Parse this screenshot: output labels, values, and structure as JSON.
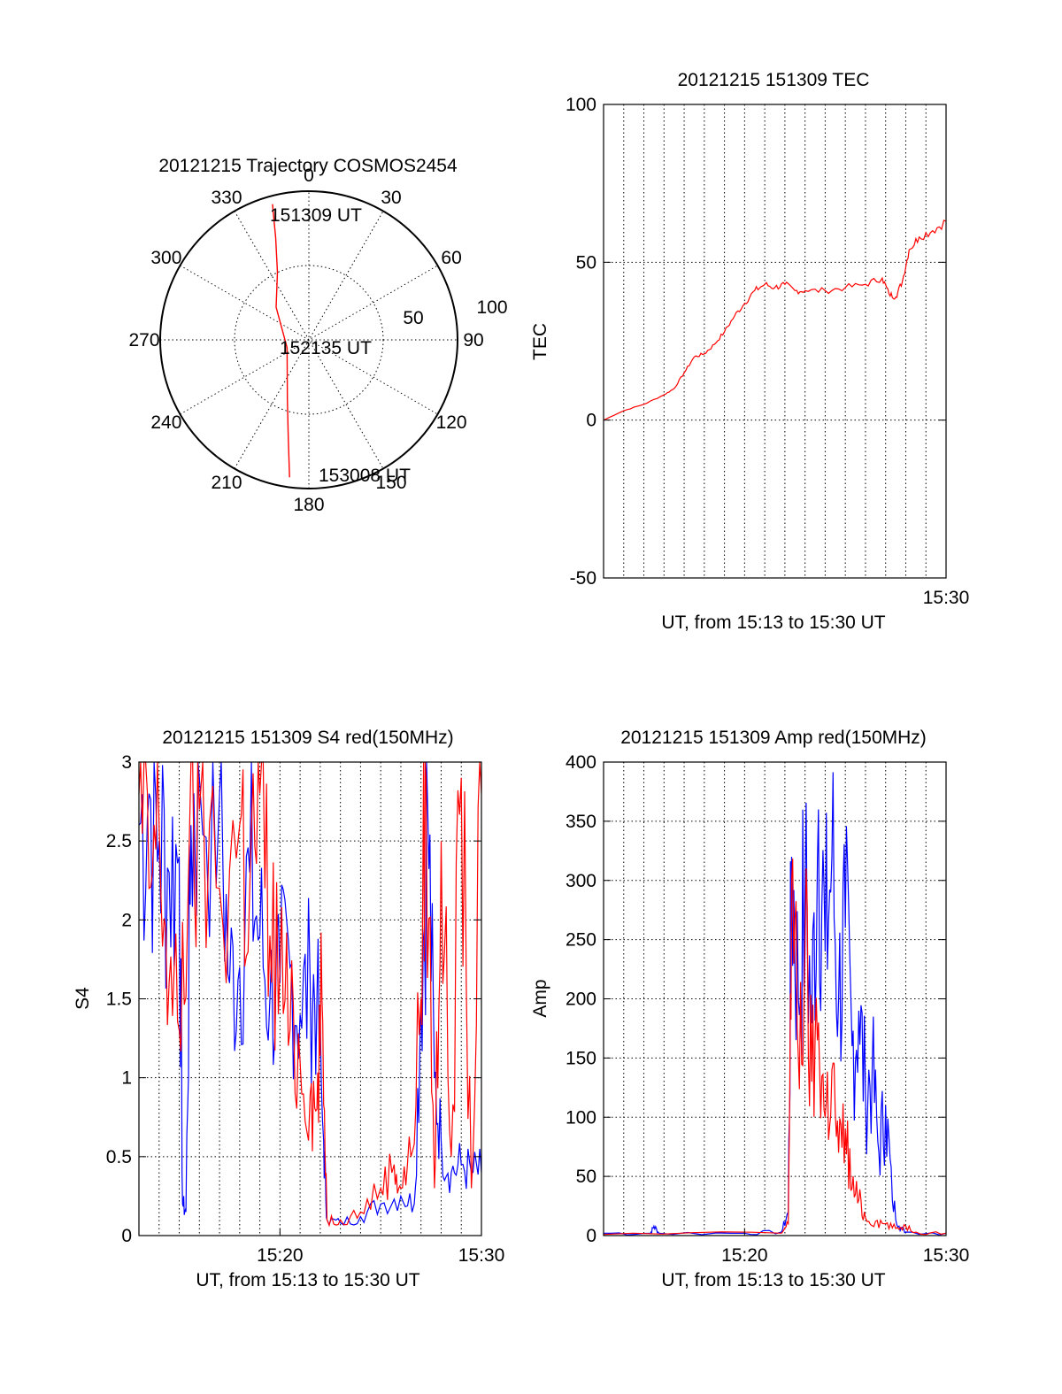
{
  "colors": {
    "red": "#ff0000",
    "blue": "#0000ff",
    "axis": "#000000",
    "grid": "#000000",
    "background": "#ffffff"
  },
  "chart_data": [
    {
      "id": "trajectory",
      "type": "polar",
      "title": "20121215 Trajectory COSMOS2454",
      "angle_labels": [
        "0",
        "30",
        "60",
        "90",
        "120",
        "150",
        "180",
        "210",
        "240",
        "270",
        "300",
        "330"
      ],
      "radius_labels": [
        "50",
        "100"
      ],
      "grid": true,
      "start_label": "151309 UT",
      "mid_label": "152135 UT",
      "end_label": "153008 UT",
      "series": [
        {
          "color": "red",
          "points": [
            {
              "az": 345,
              "el": 5
            },
            {
              "az": 342,
              "el": 25
            },
            {
              "az": 335,
              "el": 45
            },
            {
              "az": 315,
              "el": 62
            },
            {
              "az": 250,
              "el": 76
            },
            {
              "az": 200,
              "el": 52
            },
            {
              "az": 192,
              "el": 30
            },
            {
              "az": 188,
              "el": 6
            }
          ]
        }
      ]
    },
    {
      "id": "tec",
      "type": "line",
      "title": "20121215 151309 TEC",
      "xlabel": "UT, from 15:13 to 15:30 UT",
      "ylabel": "TEC",
      "xlim": [
        "15:13",
        "15:30"
      ],
      "ylim": [
        -50,
        100
      ],
      "yticks": [
        "-50",
        "0",
        "50",
        "100"
      ],
      "xtick_labels": [
        {
          "x": "15:30",
          "label": "15:30"
        }
      ],
      "grid": true,
      "series": [
        {
          "color": "red",
          "points": [
            [
              "15:13:00",
              0
            ],
            [
              "15:14:00",
              3
            ],
            [
              "15:15:00",
              5
            ],
            [
              "15:16:00",
              8
            ],
            [
              "15:16:30",
              10
            ],
            [
              "15:17:00",
              15
            ],
            [
              "15:17:30",
              20
            ],
            [
              "15:18:00",
              21
            ],
            [
              "15:18:30",
              24
            ],
            [
              "15:19:00",
              28
            ],
            [
              "15:19:30",
              33
            ],
            [
              "15:20:00",
              37
            ],
            [
              "15:20:30",
              41
            ],
            [
              "15:21:00",
              43
            ],
            [
              "15:21:30",
              42
            ],
            [
              "15:22:00",
              43
            ],
            [
              "15:22:30",
              41
            ],
            [
              "15:23:00",
              41
            ],
            [
              "15:24:00",
              41
            ],
            [
              "15:25:00",
              42
            ],
            [
              "15:26:00",
              43
            ],
            [
              "15:26:50",
              45
            ],
            [
              "15:27:10",
              40
            ],
            [
              "15:27:30",
              39
            ],
            [
              "15:27:50",
              44
            ],
            [
              "15:28:10",
              54
            ],
            [
              "15:28:40",
              58
            ],
            [
              "15:29:20",
              60
            ],
            [
              "15:30:00",
              63
            ]
          ]
        }
      ]
    },
    {
      "id": "s4",
      "type": "line",
      "title": "20121215 151309 S4 red(150MHz)",
      "xlabel": "UT, from 15:13 to 15:30 UT",
      "ylabel": "S4",
      "xlim": [
        "15:13",
        "15:30"
      ],
      "ylim": [
        0,
        3
      ],
      "yticks": [
        "0",
        "0.5",
        "1",
        "1.5",
        "2",
        "2.5",
        "3"
      ],
      "xtick_labels": [
        {
          "x": "15:20",
          "label": "15:20"
        },
        {
          "x": "15:30",
          "label": "15:30"
        }
      ],
      "grid": true,
      "series": [
        {
          "color": "blue",
          "points": [
            [
              "15:13:00",
              2.6
            ],
            [
              "15:13:30",
              2.8
            ],
            [
              "15:14:00",
              2.5
            ],
            [
              "15:14:30",
              2.3
            ],
            [
              "15:15:00",
              2.4
            ],
            [
              "15:15:10",
              0.2
            ],
            [
              "15:15:20",
              0.15
            ],
            [
              "15:15:35",
              2.6
            ],
            [
              "15:16:00",
              2.9
            ],
            [
              "15:17:00",
              2.8
            ],
            [
              "15:17:30",
              1.6
            ],
            [
              "15:18:00",
              1.7
            ],
            [
              "15:18:30",
              2.3
            ],
            [
              "15:19:00",
              1.9
            ],
            [
              "15:19:30",
              1.5
            ],
            [
              "15:20:00",
              1.6
            ],
            [
              "15:20:30",
              1.7
            ],
            [
              "15:21:00",
              1.4
            ],
            [
              "15:21:30",
              1.6
            ],
            [
              "15:21:50",
              1.5
            ],
            [
              "15:22:10",
              0.6
            ],
            [
              "15:22:20",
              0.1
            ],
            [
              "15:23:00",
              0.08
            ],
            [
              "15:24:00",
              0.12
            ],
            [
              "15:25:00",
              0.2
            ],
            [
              "15:26:00",
              0.25
            ],
            [
              "15:26:40",
              0.2
            ],
            [
              "15:27:00",
              1.5
            ],
            [
              "15:27:20",
              2.7
            ],
            [
              "15:27:40",
              1.0
            ],
            [
              "15:28:00",
              0.6
            ],
            [
              "15:28:30",
              0.4
            ],
            [
              "15:29:00",
              0.45
            ],
            [
              "15:29:30",
              0.4
            ],
            [
              "15:30:00",
              0.4
            ]
          ]
        },
        {
          "color": "red",
          "points": [
            [
              "15:13:00",
              2.8
            ],
            [
              "15:13:30",
              2.2
            ],
            [
              "15:14:00",
              2.6
            ],
            [
              "15:14:30",
              1.6
            ],
            [
              "15:15:00",
              1.3
            ],
            [
              "15:15:30",
              2.5
            ],
            [
              "15:16:00",
              2.7
            ],
            [
              "15:17:00",
              2.2
            ],
            [
              "15:18:00",
              2.6
            ],
            [
              "15:18:30",
              2.2
            ],
            [
              "15:19:00",
              2.8
            ],
            [
              "15:19:30",
              1.9
            ],
            [
              "15:20:00",
              1.7
            ],
            [
              "15:20:30",
              1.3
            ],
            [
              "15:21:00",
              1.1
            ],
            [
              "15:21:30",
              0.9
            ],
            [
              "15:21:50",
              0.8
            ],
            [
              "15:22:05",
              1.5
            ],
            [
              "15:22:20",
              0.1
            ],
            [
              "15:23:00",
              0.1
            ],
            [
              "15:24:00",
              0.15
            ],
            [
              "15:25:00",
              0.3
            ],
            [
              "15:25:40",
              0.45
            ],
            [
              "15:26:00",
              0.3
            ],
            [
              "15:26:30",
              0.5
            ],
            [
              "15:27:00",
              1.5
            ],
            [
              "15:27:15",
              2.9
            ],
            [
              "15:27:40",
              0.3
            ],
            [
              "15:28:00",
              2.5
            ],
            [
              "15:28:30",
              0.5
            ],
            [
              "15:29:00",
              2.9
            ],
            [
              "15:29:30",
              0.3
            ],
            [
              "15:30:00",
              2.8
            ]
          ]
        }
      ]
    },
    {
      "id": "amp",
      "type": "line",
      "title": "20121215 151309 Amp red(150MHz)",
      "xlabel": "UT, from 15:13 to 15:30 UT",
      "ylabel": "Amp",
      "xlim": [
        "15:13",
        "15:30"
      ],
      "ylim": [
        0,
        400
      ],
      "yticks": [
        "0",
        "50",
        "100",
        "150",
        "200",
        "250",
        "300",
        "350",
        "400"
      ],
      "xtick_labels": [
        {
          "x": "15:20",
          "label": "15:20"
        },
        {
          "x": "15:30",
          "label": "15:30"
        }
      ],
      "grid": true,
      "series": [
        {
          "color": "blue",
          "points": [
            [
              "15:13:00",
              2
            ],
            [
              "15:15:20",
              2
            ],
            [
              "15:15:30",
              8
            ],
            [
              "15:15:45",
              2
            ],
            [
              "15:20:00",
              2
            ],
            [
              "15:21:50",
              3
            ],
            [
              "15:22:10",
              20
            ],
            [
              "15:22:20",
              320
            ],
            [
              "15:22:40",
              200
            ],
            [
              "15:23:00",
              290
            ],
            [
              "15:23:20",
              180
            ],
            [
              "15:23:40",
              360
            ],
            [
              "15:24:00",
              240
            ],
            [
              "15:24:20",
              320
            ],
            [
              "15:24:40",
              200
            ],
            [
              "15:25:00",
              260
            ],
            [
              "15:25:20",
              160
            ],
            [
              "15:25:40",
              190
            ],
            [
              "15:26:00",
              120
            ],
            [
              "15:26:20",
              140
            ],
            [
              "15:26:40",
              70
            ],
            [
              "15:27:00",
              110
            ],
            [
              "15:27:20",
              30
            ],
            [
              "15:27:40",
              8
            ],
            [
              "15:28:00",
              3
            ],
            [
              "15:30:00",
              2
            ]
          ]
        },
        {
          "color": "red",
          "points": [
            [
              "15:13:00",
              1
            ],
            [
              "15:21:50",
              2
            ],
            [
              "15:22:10",
              10
            ],
            [
              "15:22:20",
              300
            ],
            [
              "15:22:40",
              150
            ],
            [
              "15:23:00",
              240
            ],
            [
              "15:23:20",
              130
            ],
            [
              "15:23:40",
              180
            ],
            [
              "15:24:00",
              100
            ],
            [
              "15:24:20",
              140
            ],
            [
              "15:24:40",
              70
            ],
            [
              "15:25:00",
              90
            ],
            [
              "15:25:20",
              40
            ],
            [
              "15:25:40",
              30
            ],
            [
              "15:26:00",
              15
            ],
            [
              "15:26:30",
              12
            ],
            [
              "15:27:00",
              10
            ],
            [
              "15:27:30",
              6
            ],
            [
              "15:28:00",
              8
            ],
            [
              "15:28:30",
              3
            ],
            [
              "15:30:00",
              2
            ]
          ]
        }
      ]
    }
  ]
}
